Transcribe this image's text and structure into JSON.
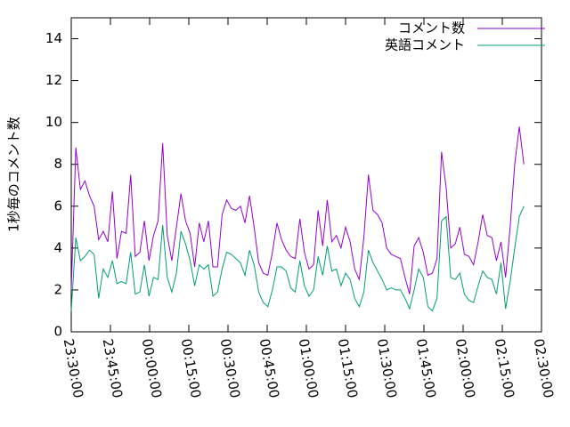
{
  "chart_data": {
    "type": "line",
    "ylabel": "1秒毎のコメント数",
    "x": [
      "23:30:00",
      "23:31:45",
      "23:33:30",
      "23:35:15",
      "23:37:00",
      "23:38:45",
      "23:40:30",
      "23:42:15",
      "23:44:00",
      "23:45:45",
      "23:47:30",
      "23:49:15",
      "23:51:00",
      "23:52:45",
      "23:54:30",
      "23:56:15",
      "23:58:00",
      "23:59:45",
      "00:01:30",
      "00:03:15",
      "00:05:00",
      "00:06:45",
      "00:08:30",
      "00:10:15",
      "00:12:00",
      "00:13:45",
      "00:15:30",
      "00:17:15",
      "00:19:00",
      "00:20:45",
      "00:22:30",
      "00:24:15",
      "00:26:00",
      "00:27:45",
      "00:29:30",
      "00:31:15",
      "00:33:00",
      "00:34:45",
      "00:36:30",
      "00:38:15",
      "00:40:00",
      "00:41:45",
      "00:43:30",
      "00:45:15",
      "00:47:00",
      "00:48:45",
      "00:50:30",
      "00:52:15",
      "00:54:00",
      "00:55:45",
      "00:57:30",
      "00:59:15",
      "01:01:00",
      "01:02:45",
      "01:04:30",
      "01:06:15",
      "01:08:00",
      "01:09:45",
      "01:11:30",
      "01:13:15",
      "01:15:00",
      "01:16:45",
      "01:18:30",
      "01:20:15",
      "01:22:00",
      "01:23:45",
      "01:25:30",
      "01:27:15",
      "01:29:00",
      "01:30:45",
      "01:32:30",
      "01:34:15",
      "01:36:00",
      "01:37:45",
      "01:39:30",
      "01:41:15",
      "01:43:00",
      "01:44:45",
      "01:46:30",
      "01:48:15",
      "01:50:00",
      "01:51:45",
      "01:53:30",
      "01:55:15",
      "01:57:00",
      "01:58:45",
      "02:00:30",
      "02:02:15",
      "02:04:00",
      "02:05:45",
      "02:07:30",
      "02:09:15",
      "02:11:00",
      "02:12:45",
      "02:14:30",
      "02:16:15",
      "02:18:00",
      "02:19:45",
      "02:21:30",
      "02:23:15"
    ],
    "series": [
      {
        "name": "コメント数",
        "color": "#9400d3",
        "values": [
          2.0,
          8.8,
          6.8,
          7.2,
          6.5,
          6.0,
          4.4,
          4.8,
          4.3,
          6.7,
          3.5,
          4.8,
          4.7,
          7.5,
          3.6,
          3.8,
          5.3,
          3.4,
          4.6,
          5.3,
          9.0,
          4.6,
          3.4,
          5.0,
          6.6,
          5.3,
          4.7,
          3.1,
          5.2,
          4.3,
          5.3,
          3.1,
          3.1,
          5.6,
          6.3,
          5.9,
          5.8,
          6.0,
          5.2,
          6.5,
          5.0,
          3.3,
          2.8,
          2.7,
          3.8,
          5.2,
          4.4,
          3.9,
          3.6,
          3.5,
          5.4,
          3.8,
          3.0,
          3.2,
          5.8,
          4.1,
          6.3,
          4.3,
          4.6,
          4.0,
          5.0,
          4.3,
          3.0,
          2.5,
          4.5,
          7.5,
          5.8,
          5.6,
          5.2,
          4.0,
          3.7,
          3.6,
          3.5,
          2.6,
          1.8,
          4.1,
          4.5,
          3.8,
          2.7,
          2.8,
          3.5,
          8.6,
          6.9,
          4.0,
          4.2,
          5.0,
          3.7,
          3.6,
          3.2,
          4.3,
          5.6,
          4.6,
          4.5,
          3.4,
          4.3,
          2.6,
          5.0,
          8.0,
          9.8,
          8.0
        ]
      },
      {
        "name": "英語コメント",
        "color": "#009e73",
        "values": [
          1.0,
          4.5,
          3.4,
          3.6,
          3.9,
          3.7,
          1.6,
          3.0,
          2.6,
          3.4,
          2.3,
          2.4,
          2.3,
          3.8,
          1.8,
          1.9,
          3.2,
          1.7,
          2.6,
          2.5,
          5.1,
          2.6,
          1.9,
          2.8,
          4.8,
          4.2,
          3.4,
          2.2,
          3.2,
          3.0,
          3.2,
          1.7,
          1.9,
          3.0,
          3.8,
          3.7,
          3.5,
          3.3,
          2.7,
          3.9,
          3.2,
          1.9,
          1.4,
          1.2,
          2.0,
          3.1,
          3.1,
          2.9,
          2.1,
          1.9,
          3.4,
          2.2,
          1.7,
          2.0,
          3.6,
          2.7,
          4.1,
          2.9,
          3.0,
          2.2,
          2.8,
          2.5,
          1.6,
          1.2,
          1.9,
          3.9,
          3.3,
          2.9,
          2.5,
          2.0,
          2.1,
          2.0,
          2.0,
          1.6,
          1.1,
          2.0,
          3.0,
          2.6,
          1.2,
          1.0,
          1.6,
          5.3,
          5.5,
          2.6,
          2.5,
          2.8,
          1.8,
          1.5,
          1.4,
          2.2,
          2.9,
          2.6,
          2.5,
          1.8,
          3.3,
          1.1,
          2.4,
          4.0,
          5.5,
          6.0
        ]
      }
    ],
    "xlim": [
      "23:30:00",
      "02:30:00"
    ],
    "xticks": [
      "23:30:00",
      "23:45:00",
      "00:00:00",
      "00:15:00",
      "00:30:00",
      "00:45:00",
      "01:00:00",
      "01:15:00",
      "01:30:00",
      "01:45:00",
      "02:00:00",
      "02:15:00",
      "02:30:00"
    ],
    "ylim": [
      0,
      15
    ],
    "yticks": [
      0,
      2,
      4,
      6,
      8,
      10,
      12,
      14
    ],
    "grid": false,
    "legend": "top-right"
  }
}
